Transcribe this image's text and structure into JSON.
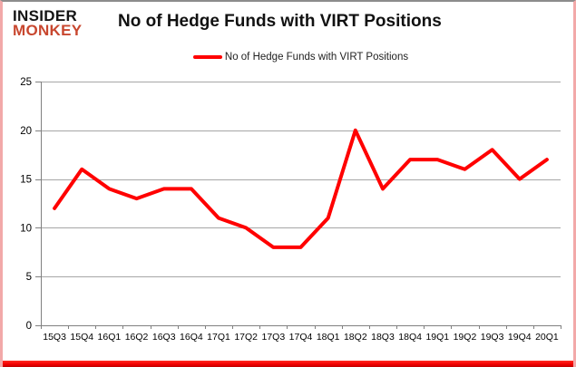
{
  "header": {
    "logo_line1": "INSIDER",
    "logo_line2": "MONKEY",
    "title": "No of Hedge Funds with VIRT Positions"
  },
  "legend": {
    "label": "No of Hedge Funds with VIRT Positions",
    "line_color": "#ff0000"
  },
  "chart_data": {
    "type": "line",
    "title": "No of Hedge Funds with VIRT Positions",
    "categories": [
      "15Q3",
      "15Q4",
      "16Q1",
      "16Q2",
      "16Q3",
      "16Q4",
      "17Q1",
      "17Q2",
      "17Q3",
      "17Q4",
      "18Q1",
      "18Q2",
      "18Q3",
      "18Q4",
      "19Q1",
      "19Q2",
      "19Q3",
      "19Q4",
      "20Q1"
    ],
    "series": [
      {
        "name": "No of Hedge Funds with VIRT Positions",
        "color": "#ff0000",
        "values": [
          12,
          16,
          14,
          13,
          14,
          14,
          11,
          10,
          8,
          8,
          11,
          20,
          14,
          17,
          17,
          16,
          18,
          15,
          17
        ]
      }
    ],
    "xlabel": "",
    "ylabel": "",
    "ylim": [
      0,
      25
    ],
    "yticks": [
      0,
      5,
      10,
      15,
      20,
      25
    ],
    "grid": true,
    "legend_position": "top"
  },
  "colors": {
    "gridline": "#a6a6a6",
    "axis": "#808080",
    "tick_text": "#000000",
    "logo_black": "#141414",
    "logo_red": "#c8472f",
    "series_red": "#ff0000",
    "outer_border_pink": "#f2a9a9",
    "bottom_strip_red": "#f40000"
  }
}
